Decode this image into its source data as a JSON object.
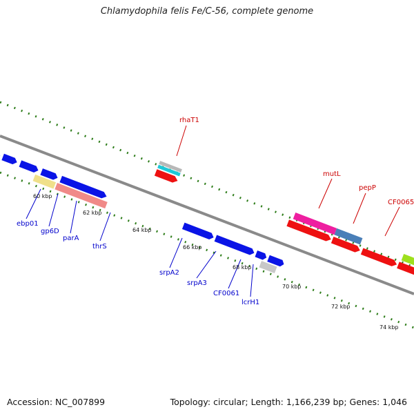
{
  "title": "Chlamydophila felis Fe/C-56, complete genome",
  "footer": {
    "accession": "Accession: NC_007899",
    "topology": "Topology: circular; Length: 1,166,239 bp; Genes: 1,046"
  },
  "colors": {
    "forward_label": "#cc0000",
    "reverse_label": "#0000cc",
    "backbone": "#8a8a8a",
    "tick": "#2e7d1a"
  },
  "scale_labels": [
    "60 kbp",
    "62 kbp",
    "64 kbp",
    "66 kbp",
    "68 kbp",
    "70 kbp",
    "72 kbp",
    "74 kbp"
  ],
  "forward_gene_labels": [
    "rhaT1",
    "mutL",
    "pepP",
    "CF0065"
  ],
  "reverse_gene_labels": [
    "ebp01",
    "gp6D",
    "parA",
    "thrS",
    "srpA2",
    "srpA3",
    "CF0061",
    "lcrH1"
  ]
}
